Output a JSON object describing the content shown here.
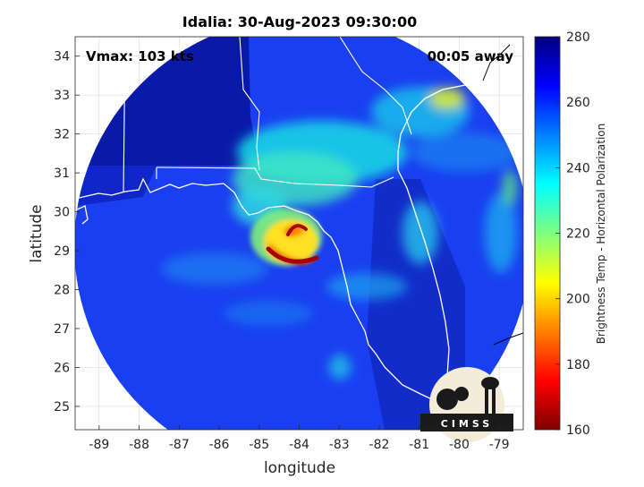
{
  "title": "Idalia: 30-Aug-2023 09:30:00",
  "vmax_label": "Vmax: 103 kts",
  "away_label": "00:05 away",
  "xlabel": "longitude",
  "ylabel": "latitude",
  "colorbar_label": "Brightness Temp - Horizontal Polarization",
  "logo_text": "CIMSS",
  "chart_data": {
    "type": "heatmap",
    "title": "Idalia: 30-Aug-2023 09:30:00",
    "xlabel": "longitude",
    "ylabel": "latitude",
    "xlim": [
      -89.6,
      -78.4
    ],
    "ylim": [
      24.4,
      34.5
    ],
    "x_ticks": [
      -89,
      -88,
      -87,
      -86,
      -85,
      -84,
      -83,
      -82,
      -81,
      -80,
      -79
    ],
    "y_ticks": [
      25,
      26,
      27,
      28,
      29,
      30,
      31,
      32,
      33,
      34
    ],
    "grid": true,
    "colorbar": {
      "label": "Brightness Temp - Horizontal Polarization",
      "range": [
        160,
        280
      ],
      "ticks": [
        160,
        180,
        200,
        220,
        240,
        260,
        280
      ],
      "colormap": "jet"
    },
    "storm_center": {
      "lon": -84.0,
      "lat": 29.4
    },
    "vmax_kts": 103,
    "time_away": "00:05"
  },
  "colors": {
    "background": "#ffffff",
    "outside_swath": "#ffffff",
    "cold": "#7f0000",
    "warm": "#00007f",
    "coastline": "#ffffff",
    "grid": "#d9d9d9"
  }
}
